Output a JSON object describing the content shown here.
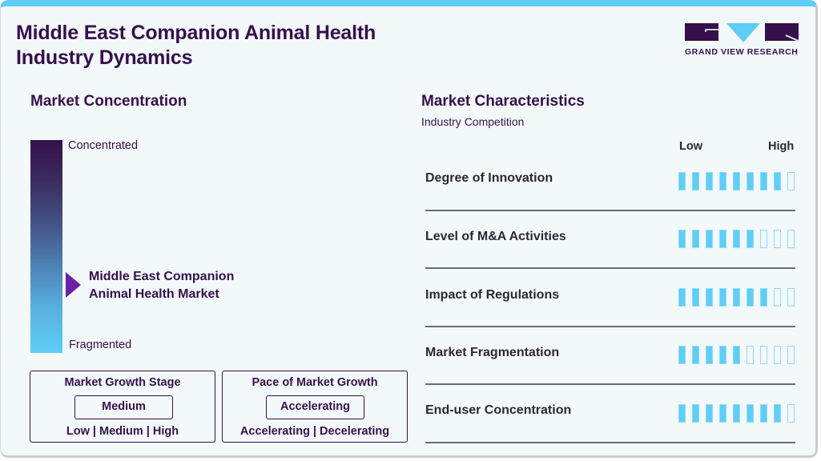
{
  "header": {
    "title_line1": "Middle East Companion Animal Health",
    "title_line2": "Industry Dynamics",
    "logo_text": "GRAND VIEW RESEARCH"
  },
  "colors": {
    "brand_dark": "#35114a",
    "accent_blue": "#5fcdf5",
    "pointer_purple": "#6c22a6"
  },
  "concentration": {
    "heading": "Market Concentration",
    "top_label": "Concentrated",
    "bottom_label": "Fragmented",
    "market_line1": "Middle East Companion",
    "market_line2": "Animal Health Market",
    "position_from_top_pct": 62
  },
  "growth_stage": {
    "heading": "Market Growth Stage",
    "selected": "Medium",
    "options": "Low  |  Medium  |  High"
  },
  "growth_pace": {
    "heading": "Pace of Market Growth",
    "selected": "Accelerating",
    "options": "Accelerating  |  Decelerating"
  },
  "characteristics": {
    "heading": "Market Characteristics",
    "subheading": "Industry Competition",
    "low_label": "Low",
    "high_label": "High",
    "scale_max": 9,
    "rows": [
      {
        "label": "Degree of Innovation",
        "filled": 8
      },
      {
        "label": "Level of M&A Activities",
        "filled": 6
      },
      {
        "label": "Impact of Regulations",
        "filled": 7
      },
      {
        "label": "Market Fragmentation",
        "filled": 5
      },
      {
        "label": "End-user Concentration",
        "filled": 8
      }
    ]
  },
  "chart_data": {
    "type": "table",
    "title": "Middle East Companion Animal Health Industry Dynamics",
    "market_concentration": "Toward fragmented (approx. 62% down from Concentrated)",
    "market_growth_stage": "Medium",
    "pace_of_market_growth": "Accelerating",
    "scale": {
      "min_label": "Low",
      "max_label": "High",
      "max": 9
    },
    "categories": [
      "Degree of Innovation",
      "Level of M&A Activities",
      "Impact of Regulations",
      "Market Fragmentation",
      "End-user Concentration"
    ],
    "values": [
      8,
      6,
      7,
      5,
      8
    ]
  }
}
